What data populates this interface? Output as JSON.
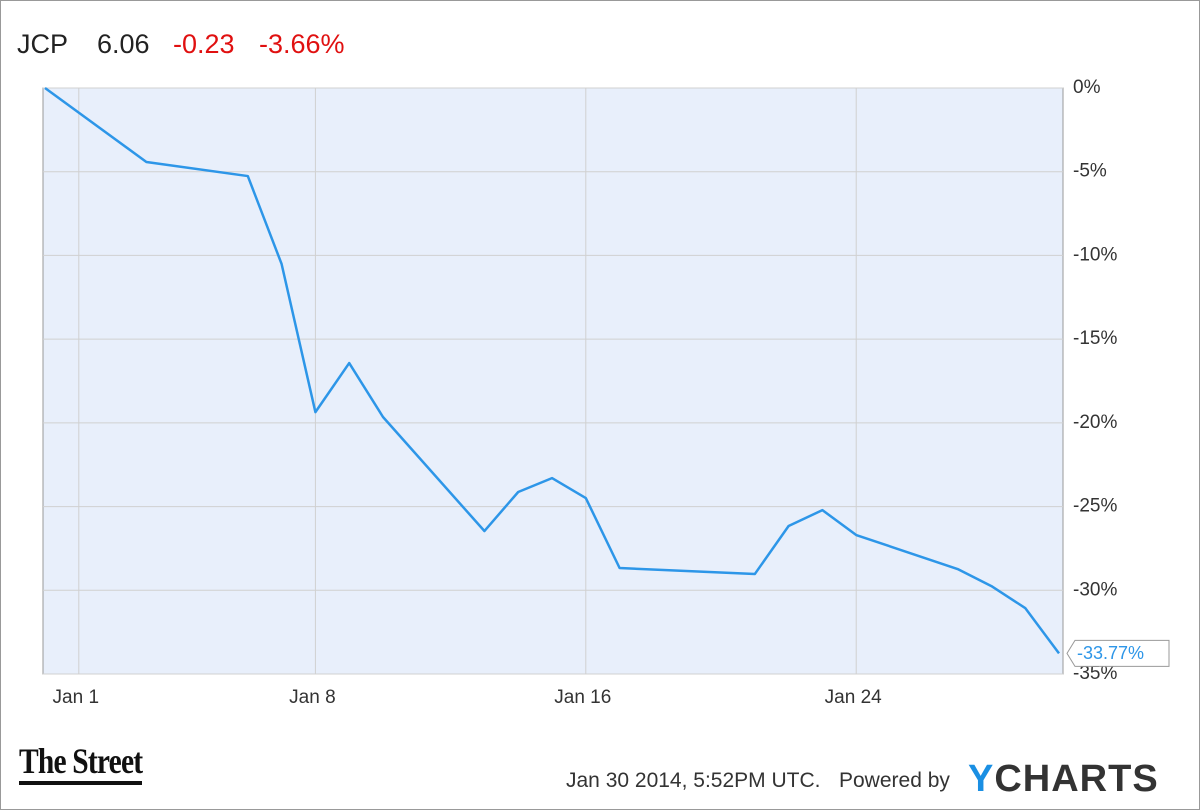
{
  "header": {
    "ticker": "JCP",
    "price": "6.06",
    "change": "-0.23",
    "change_percent": "-3.66%"
  },
  "chart_data": {
    "type": "line",
    "x": [
      0,
      3,
      6,
      7,
      8,
      9,
      10,
      13,
      14,
      15,
      16,
      17,
      21,
      22,
      23,
      24,
      27,
      28,
      29,
      30
    ],
    "series": [
      {
        "name": "JCP",
        "color": "#2d96e8",
        "values": [
          0,
          -4.42,
          -5.26,
          -10.51,
          -19.36,
          -16.43,
          -19.65,
          -26.46,
          -24.13,
          -23.3,
          -24.49,
          -28.67,
          -29.03,
          -26.16,
          -25.21,
          -26.7,
          -28.73,
          -29.75,
          -31.06,
          -33.77
        ],
        "value_labels": [
          null,
          null,
          null,
          null,
          null,
          null,
          null,
          null,
          null,
          null,
          null,
          null,
          null,
          null,
          null,
          null,
          null,
          null,
          null,
          "-33.77%"
        ]
      }
    ],
    "xlim": [
      0,
      30
    ],
    "xticks": [
      {
        "value": 1,
        "label": "Jan 1"
      },
      {
        "value": 8,
        "label": "Jan 8"
      },
      {
        "value": 16,
        "label": "Jan 16"
      },
      {
        "value": 24,
        "label": "Jan 24"
      }
    ],
    "ylim": [
      -35,
      0
    ],
    "yticks": [
      {
        "value": 0,
        "label": "0%"
      },
      {
        "value": -5,
        "label": "-5%"
      },
      {
        "value": -10,
        "label": "-10%"
      },
      {
        "value": -15,
        "label": "-15%"
      },
      {
        "value": -20,
        "label": "-20%"
      },
      {
        "value": -25,
        "label": "-25%"
      },
      {
        "value": -30,
        "label": "-30%"
      },
      {
        "value": -35,
        "label": "-35%"
      }
    ],
    "grid": true
  },
  "footer": {
    "brand": "The Street",
    "timestamp": "Jan 30 2014, 5:52PM UTC.",
    "powered_by": "Powered by",
    "provider": "YCHARTS"
  }
}
